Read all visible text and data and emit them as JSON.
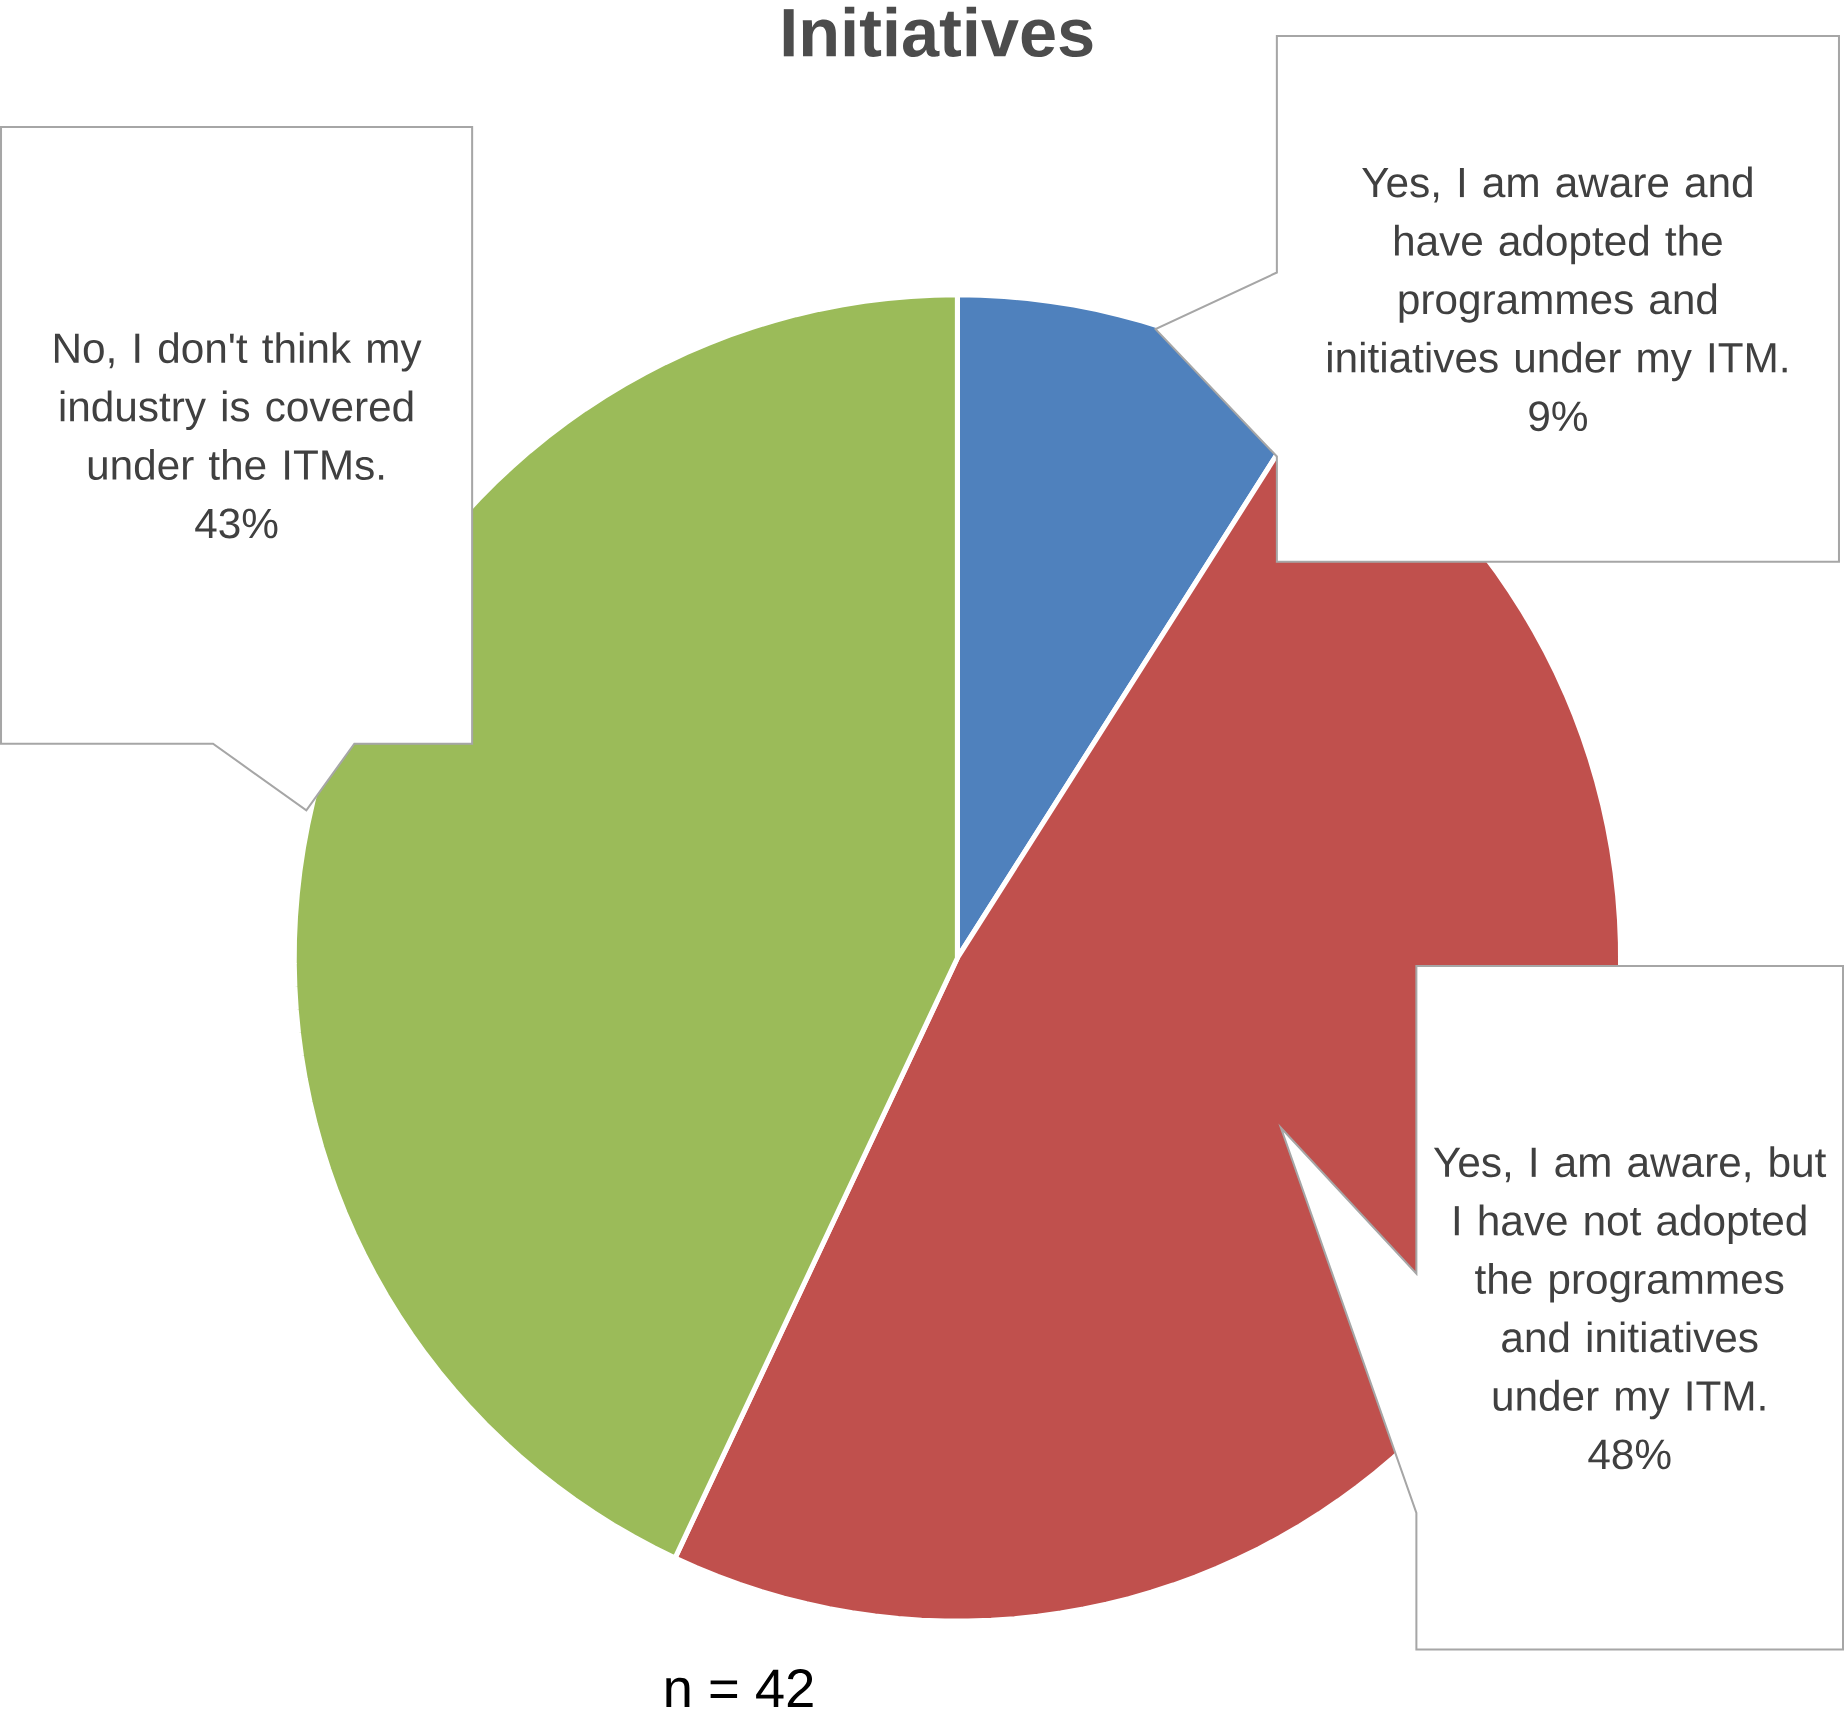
{
  "chart_data": {
    "type": "pie",
    "title": "Initiatives",
    "categories": [
      "Yes, I am aware and have adopted the programmes and initiatives under my ITM.",
      "Yes, I am aware, but I have not adopted the programmes and initiatives under my ITM.",
      "No, I don't think my industry is covered under the ITMs."
    ],
    "values": [
      9,
      48,
      43
    ],
    "colors": [
      "#4f81bd",
      "#c0504d",
      "#9bbb59"
    ],
    "value_labels": [
      "9%",
      "48%",
      "43%"
    ],
    "annotations": [
      "n = 42"
    ]
  }
}
